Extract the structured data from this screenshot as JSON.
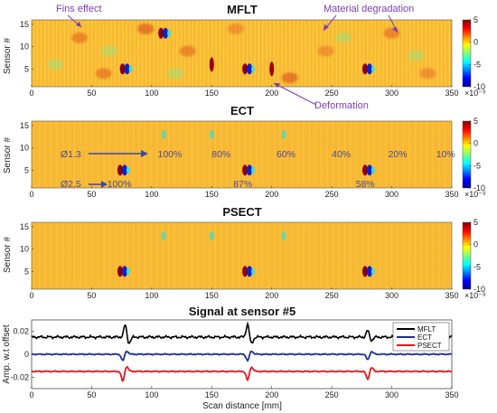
{
  "chart_data": [
    {
      "type": "heatmap",
      "title": "MFLT",
      "ylabel": "Sensor #",
      "xlim": [
        0,
        350
      ],
      "ylim": [
        1,
        16
      ],
      "xticks": [
        "0",
        "50",
        "100",
        "150",
        "200",
        "250",
        "300",
        "350"
      ],
      "yticks": [
        "5",
        "10",
        "15"
      ],
      "colorbar": {
        "ticks": [
          "5",
          "0",
          "-5",
          "-10"
        ],
        "exponent": "×10⁻³",
        "range": [
          -10,
          5
        ]
      },
      "annotations": [
        "Fins effect",
        "Material degradation",
        "Deformation"
      ],
      "hotspots": [
        {
          "x": 78,
          "sensor": 5,
          "type": "dipole"
        },
        {
          "x": 180,
          "sensor": 5,
          "type": "dipole"
        },
        {
          "x": 280,
          "sensor": 5,
          "type": "dipole"
        },
        {
          "x": 110,
          "sensor": 13,
          "type": "dipole"
        },
        {
          "x": 150,
          "sensor": 6,
          "type": "pos"
        },
        {
          "x": 200,
          "sensor": 5,
          "type": "pos"
        }
      ]
    },
    {
      "type": "heatmap",
      "title": "ECT",
      "ylabel": "Sensor #",
      "xlim": [
        0,
        350
      ],
      "ylim": [
        1,
        16
      ],
      "xticks": [
        "0",
        "50",
        "100",
        "150",
        "200",
        "250",
        "300",
        "350"
      ],
      "yticks": [
        "5",
        "10",
        "15"
      ],
      "colorbar": {
        "ticks": [
          "5",
          "0",
          "-5",
          "-10"
        ],
        "exponent": "×10⁻³",
        "range": [
          -10,
          5
        ]
      },
      "row_labels": [
        "Ø1.3",
        "Ø2.5"
      ],
      "defect_labels_upper": [
        "100%",
        "80%",
        "60%",
        "40%",
        "20%",
        "10%"
      ],
      "defect_labels_lower": [
        "100%",
        "87%",
        "58%"
      ],
      "hotspots": [
        {
          "x": 76,
          "sensor": 5,
          "type": "dipole"
        },
        {
          "x": 180,
          "sensor": 5,
          "type": "dipole"
        },
        {
          "x": 280,
          "sensor": 5,
          "type": "dipole"
        },
        {
          "x": 110,
          "sensor": 13,
          "type": "weak"
        },
        {
          "x": 150,
          "sensor": 13,
          "type": "weak"
        },
        {
          "x": 210,
          "sensor": 13,
          "type": "weak"
        }
      ]
    },
    {
      "type": "heatmap",
      "title": "PSECT",
      "ylabel": "Sensor #",
      "xlim": [
        0,
        350
      ],
      "ylim": [
        1,
        16
      ],
      "xticks": [
        "0",
        "50",
        "100",
        "150",
        "200",
        "250",
        "300",
        "350"
      ],
      "yticks": [
        "5",
        "10",
        "15"
      ],
      "colorbar": {
        "ticks": [
          "5",
          "0",
          "-5",
          "-10"
        ],
        "exponent": "×10⁻³",
        "range": [
          -10,
          5
        ]
      },
      "hotspots": [
        {
          "x": 76,
          "sensor": 5,
          "type": "dipole"
        },
        {
          "x": 180,
          "sensor": 5,
          "type": "dipole"
        },
        {
          "x": 280,
          "sensor": 5,
          "type": "dipole"
        },
        {
          "x": 110,
          "sensor": 13,
          "type": "weak"
        },
        {
          "x": 150,
          "sensor": 13,
          "type": "weak"
        },
        {
          "x": 210,
          "sensor": 13,
          "type": "weak"
        }
      ]
    },
    {
      "type": "line",
      "title": "Signal at sensor #5",
      "xlabel": "Scan distance [mm]",
      "ylabel": "Amp. w.t offset",
      "xlim": [
        0,
        350
      ],
      "ylim": [
        -0.03,
        0.03
      ],
      "xticks": [
        "0",
        "50",
        "100",
        "150",
        "200",
        "250",
        "300",
        "350"
      ],
      "yticks": [
        "0.02",
        "0",
        "-0.02"
      ],
      "legend": "top-right",
      "series": [
        {
          "name": "MFLT",
          "color": "#000000",
          "offset": 0.015,
          "peaks": [
            {
              "x": 78,
              "a": 0.011
            },
            {
              "x": 180,
              "a": 0.012
            },
            {
              "x": 280,
              "a": 0.006
            }
          ]
        },
        {
          "name": "ECT",
          "color": "#1f2f9a",
          "offset": 0.0,
          "peaks": [
            {
              "x": 76,
              "a": -0.006
            },
            {
              "x": 180,
              "a": -0.006
            },
            {
              "x": 280,
              "a": -0.005
            }
          ]
        },
        {
          "name": "PSECT",
          "color": "#e0191e",
          "offset": -0.015,
          "peaks": [
            {
              "x": 76,
              "a": -0.009
            },
            {
              "x": 180,
              "a": -0.008
            },
            {
              "x": 280,
              "a": -0.007
            }
          ]
        }
      ]
    }
  ]
}
